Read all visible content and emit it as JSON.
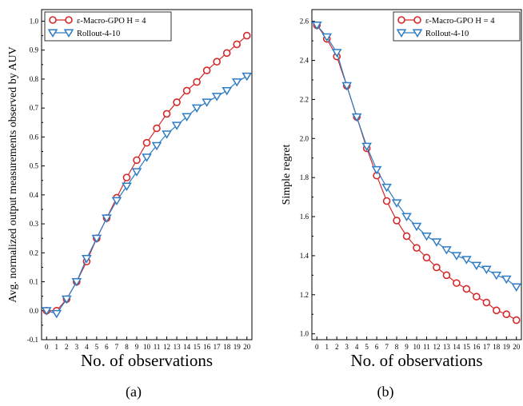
{
  "figure": {
    "caption_a": "(a)",
    "caption_b": "(b)"
  },
  "colors": {
    "series_1": "#d62728",
    "series_2": "#2f7cc4",
    "axis": "#000000"
  },
  "chart_data": [
    {
      "type": "line",
      "xlabel": "No. of observations",
      "ylabel": "Avg. normalized output measurements observed by AUV",
      "xlim": [
        -0.5,
        20.5
      ],
      "ylim": [
        -0.1,
        1.04
      ],
      "x_ticks": [
        "0",
        "1",
        "2",
        "3",
        "4",
        "5",
        "6",
        "7",
        "8",
        "9",
        "10",
        "11",
        "12",
        "13",
        "14",
        "15",
        "16",
        "17",
        "18",
        "19",
        "20"
      ],
      "y_ticks": [
        "-0.1",
        "0.0",
        "0.1",
        "0.2",
        "0.3",
        "0.4",
        "0.5",
        "0.6",
        "0.7",
        "0.8",
        "0.9",
        "1.0"
      ],
      "legend_position": "top-left",
      "x": [
        0,
        1,
        2,
        3,
        4,
        5,
        6,
        7,
        8,
        9,
        10,
        11,
        12,
        13,
        14,
        15,
        16,
        17,
        18,
        19,
        20
      ],
      "series": [
        {
          "name": "ε-Macro-GPO H = 4",
          "marker": "circle",
          "values": [
            0.0,
            0.0,
            0.04,
            0.1,
            0.17,
            0.25,
            0.32,
            0.39,
            0.46,
            0.52,
            0.58,
            0.63,
            0.68,
            0.72,
            0.76,
            0.79,
            0.83,
            0.86,
            0.89,
            0.92,
            0.95
          ]
        },
        {
          "name": "Rollout-4-10",
          "marker": "triangle-down",
          "values": [
            0.0,
            -0.01,
            0.04,
            0.1,
            0.18,
            0.25,
            0.32,
            0.38,
            0.43,
            0.48,
            0.53,
            0.57,
            0.61,
            0.64,
            0.67,
            0.7,
            0.72,
            0.74,
            0.76,
            0.79,
            0.81
          ]
        }
      ]
    },
    {
      "type": "line",
      "xlabel": "No. of observations",
      "ylabel": "Simple regret",
      "xlim": [
        -0.5,
        20.5
      ],
      "ylim": [
        0.97,
        2.66
      ],
      "x_ticks": [
        "0",
        "1",
        "2",
        "3",
        "4",
        "5",
        "6",
        "7",
        "8",
        "9",
        "10",
        "11",
        "12",
        "13",
        "14",
        "15",
        "16",
        "17",
        "18",
        "19",
        "20"
      ],
      "y_ticks": [
        "1.0",
        "1.2",
        "1.4",
        "1.6",
        "1.8",
        "2.0",
        "2.2",
        "2.4",
        "2.6"
      ],
      "legend_position": "top-right",
      "x": [
        0,
        1,
        2,
        3,
        4,
        5,
        6,
        7,
        8,
        9,
        10,
        11,
        12,
        13,
        14,
        15,
        16,
        17,
        18,
        19,
        20
      ],
      "series": [
        {
          "name": "ε-Macro-GPO H = 4",
          "marker": "circle",
          "values": [
            2.58,
            2.51,
            2.42,
            2.27,
            2.11,
            1.95,
            1.81,
            1.68,
            1.58,
            1.5,
            1.44,
            1.39,
            1.34,
            1.3,
            1.26,
            1.23,
            1.19,
            1.16,
            1.12,
            1.1,
            1.07
          ]
        },
        {
          "name": "Rollout-4-10",
          "marker": "triangle-down",
          "values": [
            2.58,
            2.52,
            2.44,
            2.27,
            2.11,
            1.96,
            1.84,
            1.75,
            1.67,
            1.6,
            1.55,
            1.5,
            1.47,
            1.43,
            1.4,
            1.38,
            1.35,
            1.33,
            1.3,
            1.28,
            1.24
          ]
        }
      ]
    }
  ]
}
